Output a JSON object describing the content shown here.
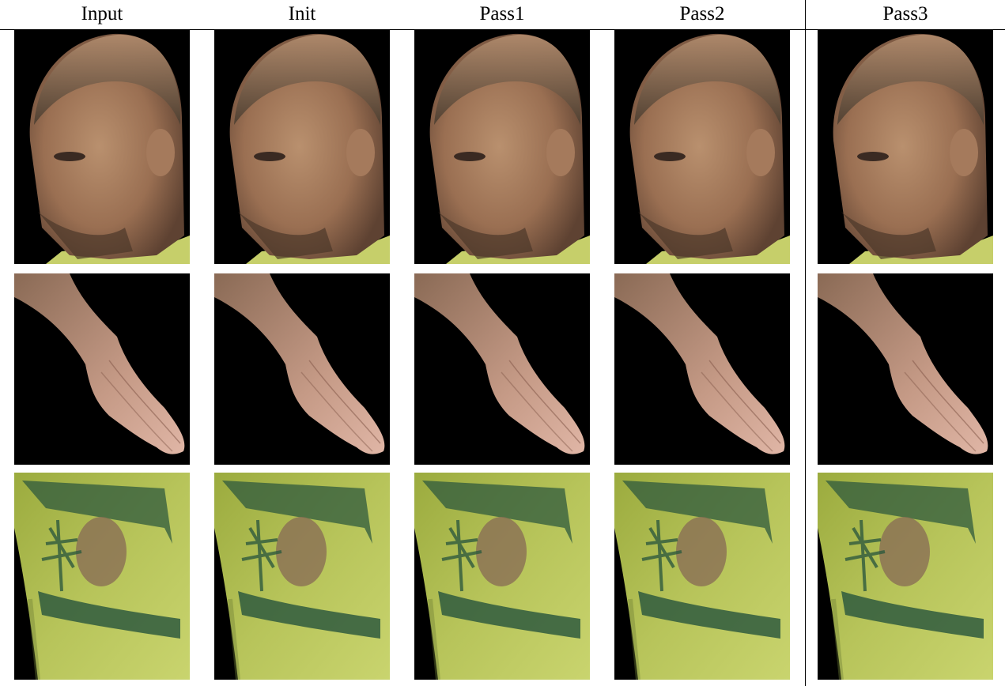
{
  "figure": {
    "columns": [
      {
        "key": "input",
        "label": "Input"
      },
      {
        "key": "init",
        "label": "Init"
      },
      {
        "key": "pass1",
        "label": "Pass1"
      },
      {
        "key": "pass2",
        "label": "Pass2"
      },
      {
        "key": "pass3",
        "label": "Pass3"
      }
    ],
    "rows": [
      {
        "key": "head",
        "subject": "head-photo"
      },
      {
        "key": "hand",
        "subject": "hand-photo"
      },
      {
        "key": "shirt",
        "subject": "shirt-print-photo"
      }
    ],
    "colors": {
      "background": "#000000",
      "skin": "#a37a5c",
      "skin_shadow": "#5e4232",
      "hair": "#5a4a3a",
      "shirt_yellow": "#c6cf6a",
      "shirt_green": "#8fa33a",
      "print_dark": "#2f5a3e",
      "print_disc": "#8a6e55"
    }
  }
}
